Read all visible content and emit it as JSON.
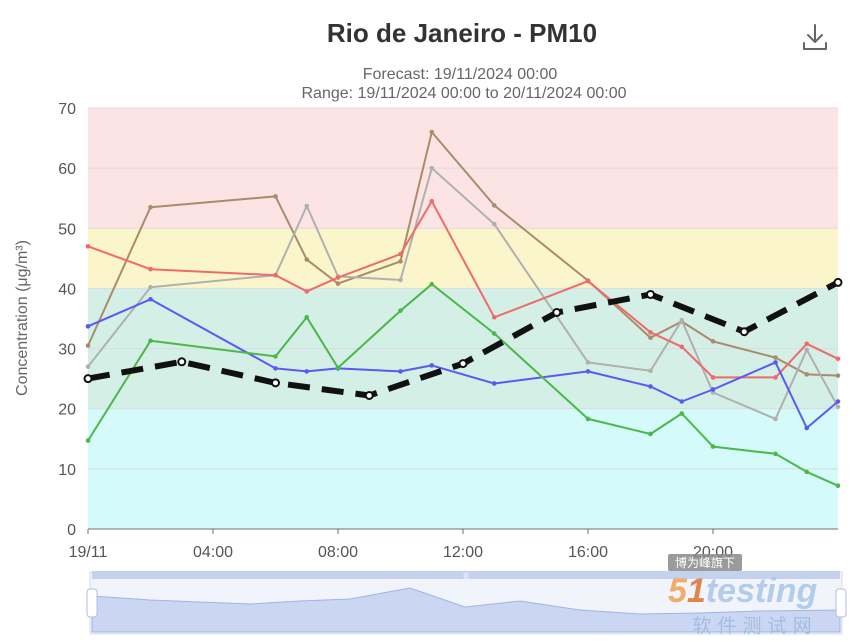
{
  "toolbar": {
    "download_icon": "download-icon"
  },
  "watermark": {
    "tag": "博为峰旗下",
    "brand_5": "5",
    "brand_1": "1",
    "brand_rest": "testing",
    "sub": "软 件 测 试 网"
  },
  "chart_data": {
    "type": "line",
    "title": "Rio de Janeiro - PM10",
    "subtitle_lines": [
      "Forecast: 19/11/2024 00:00",
      "Range: 19/11/2024 00:00 to 20/11/2024 00:00"
    ],
    "ylabel": "Concentration (μg/m³)",
    "xlabel": "",
    "ylim": [
      0,
      70
    ],
    "yticks": [
      0,
      10,
      20,
      30,
      40,
      50,
      60,
      70
    ],
    "xlim": [
      0,
      24
    ],
    "xticks": [
      {
        "x": 0,
        "label": "19/11"
      },
      {
        "x": 4,
        "label": "04:00"
      },
      {
        "x": 8,
        "label": "08:00"
      },
      {
        "x": 12,
        "label": "12:00"
      },
      {
        "x": 16,
        "label": "16:00"
      },
      {
        "x": 20,
        "label": "20:00"
      }
    ],
    "grid": true,
    "bands": [
      {
        "from": 0,
        "to": 20,
        "color": "#d4fafa"
      },
      {
        "from": 20,
        "to": 40,
        "color": "#d4efe6"
      },
      {
        "from": 40,
        "to": 50,
        "color": "#fbf5cc"
      },
      {
        "from": 50,
        "to": 70,
        "color": "#fde4e4"
      }
    ],
    "series": [
      {
        "color": "#a98c6a",
        "width": 2,
        "dash": false,
        "x": [
          0,
          2,
          6,
          7,
          8,
          10,
          11,
          13,
          16,
          18,
          19,
          20,
          22,
          23,
          24
        ],
        "y": [
          30.5,
          53.5,
          55.3,
          44.8,
          40.8,
          44.5,
          66,
          53.8,
          41.3,
          31.8,
          34.5,
          31.2,
          28.5,
          25.7,
          25.5
        ]
      },
      {
        "color": "#b0b0b0",
        "width": 2,
        "dash": false,
        "x": [
          0,
          2,
          6,
          7,
          8,
          10,
          11,
          13,
          16,
          18,
          19,
          20,
          22,
          23,
          24
        ],
        "y": [
          27,
          40.2,
          42.2,
          53.7,
          42,
          41.4,
          60,
          50.7,
          27.7,
          26.3,
          34.7,
          22.7,
          18.3,
          29.8,
          20.3
        ]
      },
      {
        "color": "#ef6a6a",
        "width": 2,
        "dash": false,
        "x": [
          0,
          2,
          6,
          7,
          8,
          10,
          11,
          13,
          16,
          18,
          19,
          20,
          22,
          23,
          24
        ],
        "y": [
          47,
          43.2,
          42.2,
          39.5,
          41.8,
          45.7,
          54.5,
          35.2,
          41.2,
          32.7,
          30.3,
          25.2,
          25.2,
          30.8,
          28.3
        ]
      },
      {
        "color": "#5a5af2",
        "width": 2,
        "dash": false,
        "x": [
          0,
          2,
          6,
          7,
          8,
          10,
          11,
          13,
          16,
          18,
          19,
          20,
          22,
          23,
          24
        ],
        "y": [
          33.7,
          38.2,
          26.7,
          26.2,
          26.7,
          26.2,
          27.2,
          24.2,
          26.2,
          23.7,
          21.2,
          23.2,
          27.7,
          16.8,
          21.2
        ]
      },
      {
        "color": "#4bb84b",
        "width": 2,
        "dash": false,
        "x": [
          0,
          2,
          6,
          7,
          8,
          10,
          11,
          13,
          16,
          18,
          19,
          20,
          22,
          23,
          24
        ],
        "y": [
          14.7,
          31.3,
          28.7,
          35.2,
          26.8,
          36.3,
          40.7,
          32.5,
          18.3,
          15.8,
          19.2,
          13.7,
          12.5,
          9.5,
          7.2
        ]
      },
      {
        "color": "#111111",
        "width": 6,
        "dash": true,
        "x": [
          0,
          3,
          6,
          9,
          12,
          15,
          18,
          21,
          24
        ],
        "y": [
          25,
          27.8,
          24.3,
          22.2,
          27.5,
          36,
          39,
          32.8,
          41
        ]
      }
    ]
  }
}
